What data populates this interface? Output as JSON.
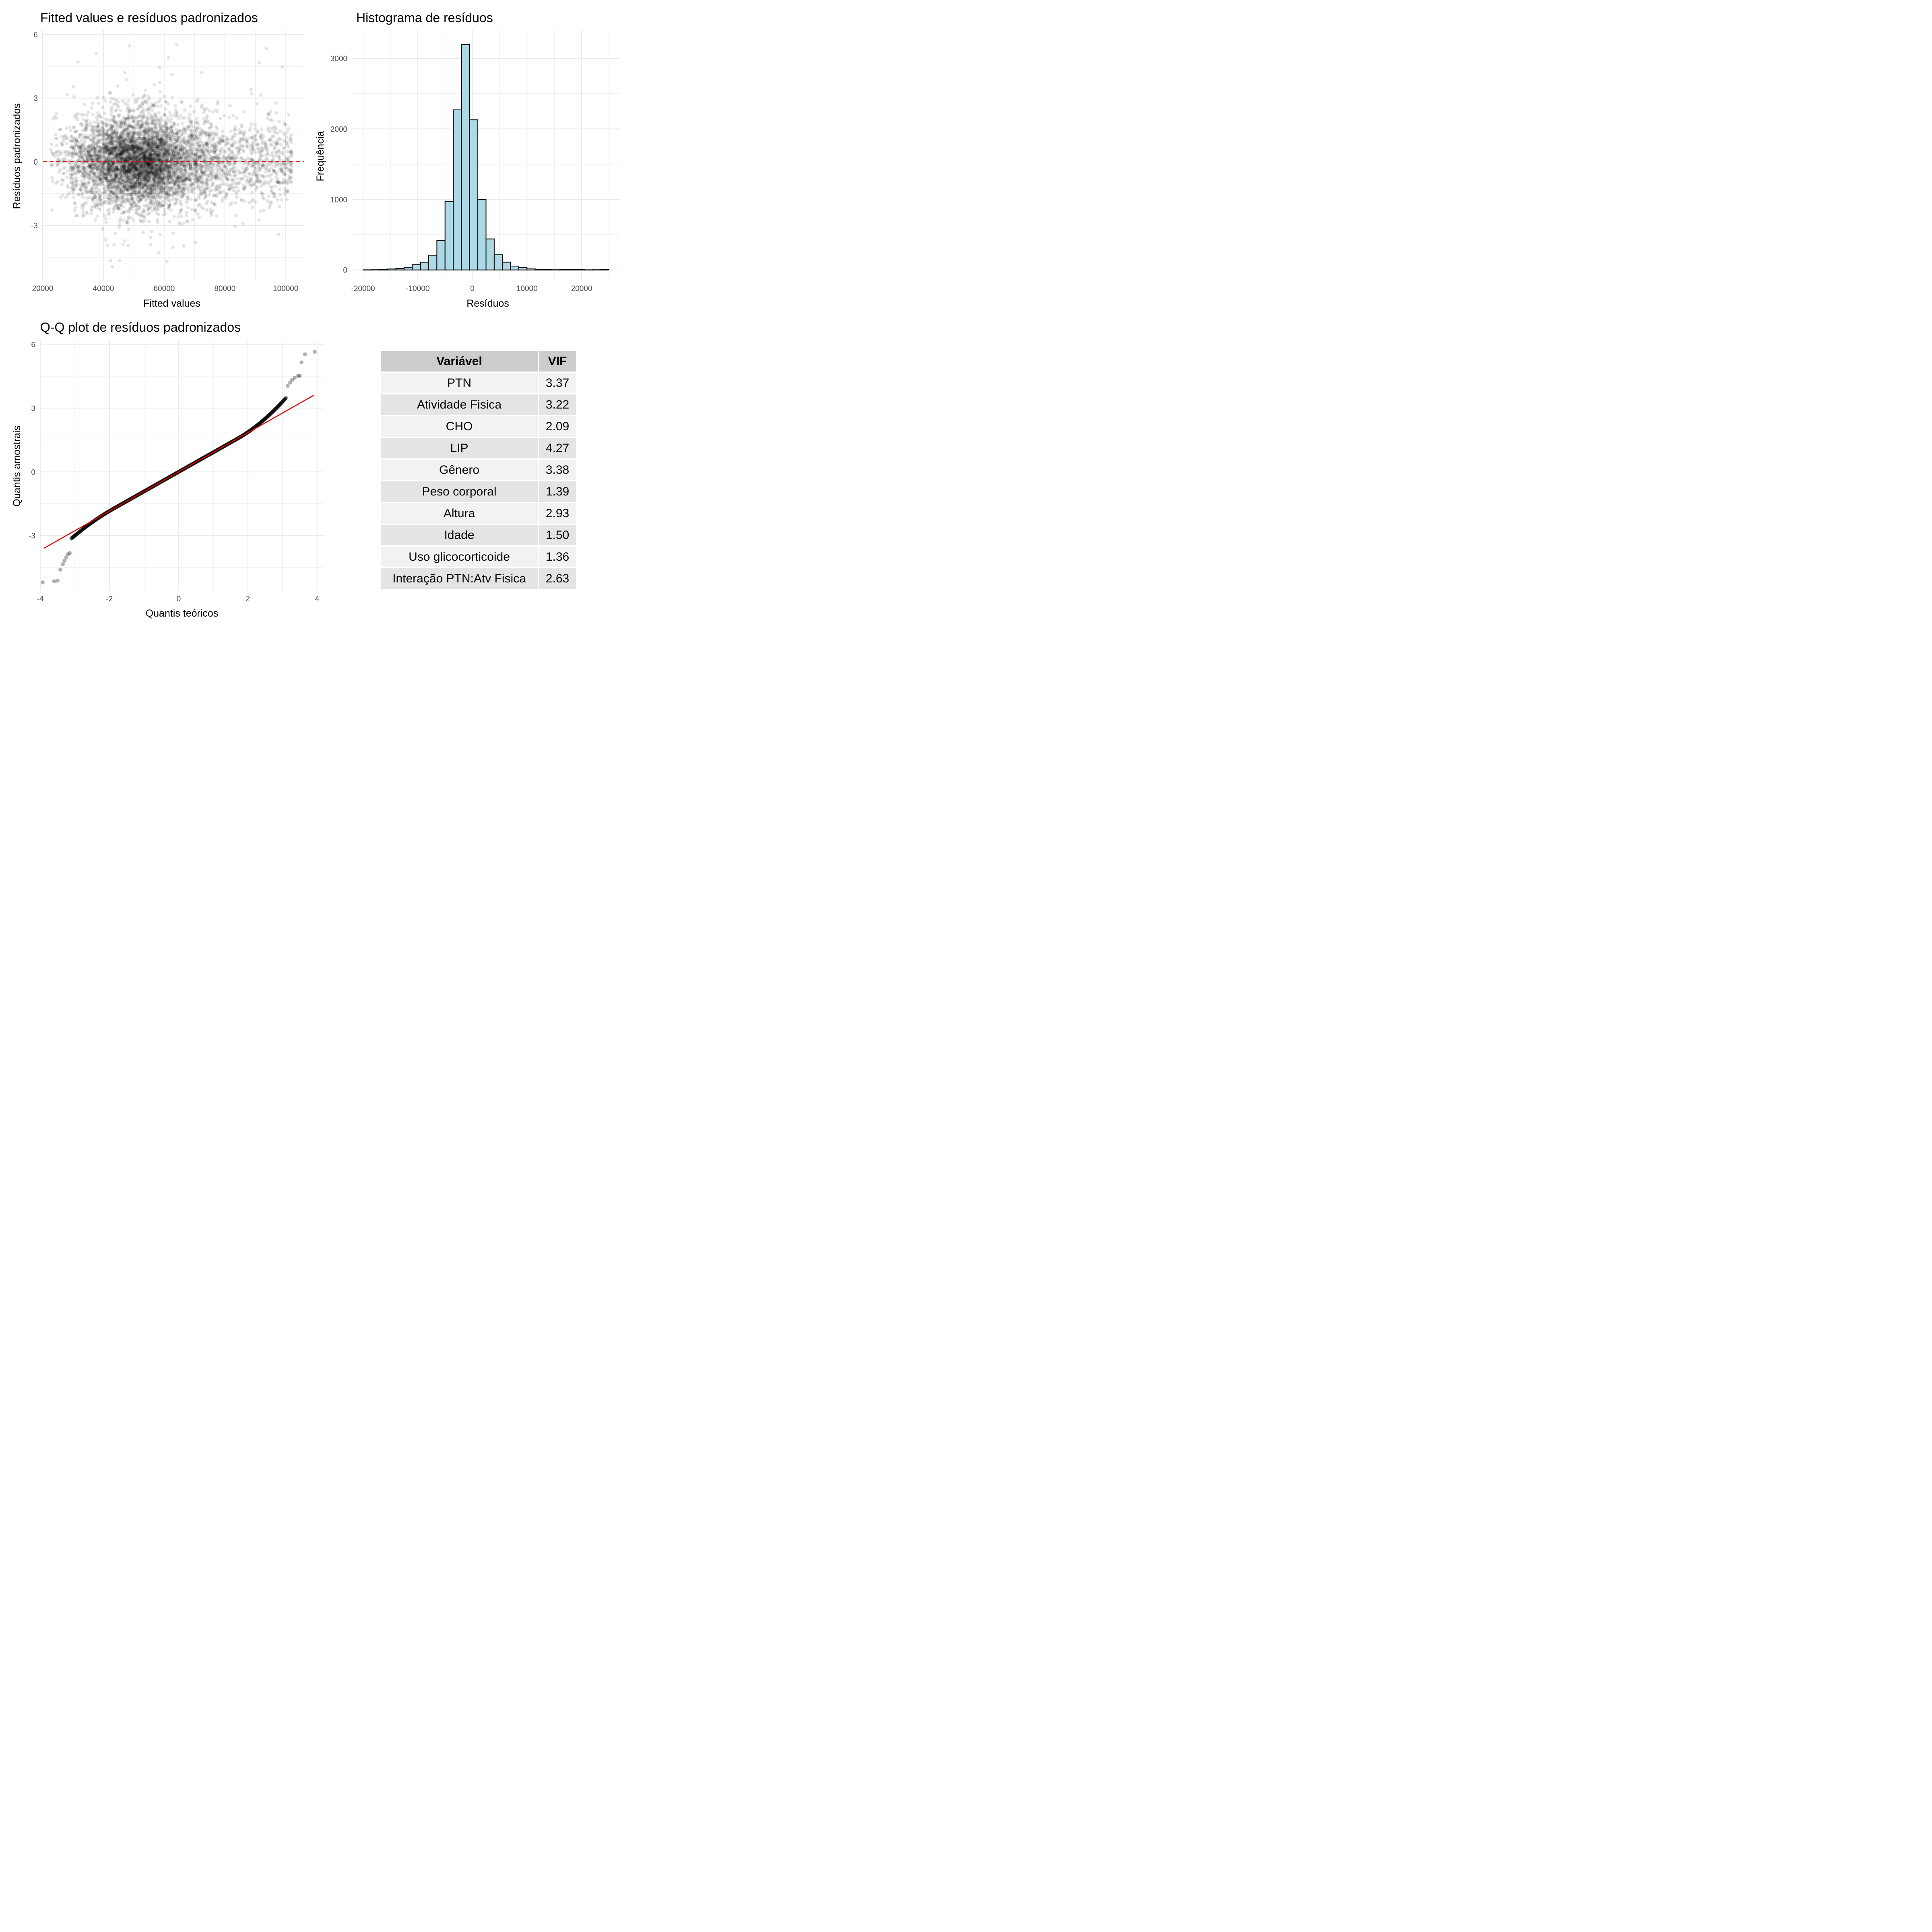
{
  "chart_data": [
    {
      "type": "scatter",
      "title": "Fitted values e resíduos padronizados",
      "xlabel": "Fitted values",
      "ylabel": "Resíduos padronizados",
      "xlim": [
        20000,
        106000
      ],
      "ylim": [
        -5.6,
        6.2
      ],
      "x_ticks": [
        "20000",
        "40000",
        "60000",
        "80000",
        "100000"
      ],
      "y_ticks": [
        "-3",
        "0",
        "3",
        "6"
      ],
      "point_color": "#000000",
      "point_alpha": 0.1,
      "reference_line": {
        "y": 0,
        "color": "#e00000",
        "style": "dashed"
      },
      "points_summary": "dense cloud centred near 50000, residuals roughly between -5.2 and 5.7",
      "grid": true
    },
    {
      "type": "bar",
      "subtype": "histogram",
      "title": "Histograma de resíduos",
      "xlabel": "Resíduos",
      "ylabel": "Frequência",
      "xlim": [
        -22000,
        27000
      ],
      "ylim": [
        -150,
        3400
      ],
      "x_ticks": [
        "-20000",
        "-10000",
        "0",
        "10000",
        "20000"
      ],
      "y_ticks": [
        "0",
        "1000",
        "2000",
        "3000"
      ],
      "bin_start": -20000,
      "bin_width": 1500,
      "values": [
        2,
        3,
        6,
        14,
        22,
        38,
        75,
        110,
        210,
        420,
        970,
        2270,
        3200,
        2130,
        1000,
        440,
        215,
        110,
        55,
        35,
        15,
        8,
        5,
        3,
        5,
        6,
        8,
        2,
        3,
        5
      ],
      "fill": "#add8e6",
      "edge": "#000000",
      "grid": true
    },
    {
      "type": "scatter",
      "subtype": "qq",
      "title": "Q-Q plot de resíduos padronizados",
      "xlabel": "Quantis teóricos",
      "ylabel": "Quantis amostrais",
      "xlim": [
        -4.0,
        4.2
      ],
      "ylim": [
        -5.6,
        6.2
      ],
      "x_ticks": [
        "-4",
        "-2",
        "0",
        "2",
        "4"
      ],
      "y_ticks": [
        "-3",
        "0",
        "3",
        "6"
      ],
      "reference_line": {
        "x": [
          -3.9,
          3.9
        ],
        "y": [
          -3.6,
          3.6
        ],
        "color": "#e00000"
      },
      "lower_tail_points": [
        [
          -3.93,
          -5.2
        ],
        [
          -3.6,
          -5.15
        ],
        [
          -3.5,
          -5.12
        ],
        [
          -3.42,
          -4.6
        ],
        [
          -3.35,
          -4.35
        ],
        [
          -3.3,
          -4.18
        ],
        [
          -3.25,
          -4.03
        ],
        [
          -3.2,
          -3.88
        ],
        [
          -3.15,
          -3.82
        ]
      ],
      "upper_tail_points": [
        [
          3.15,
          4.05
        ],
        [
          3.22,
          4.2
        ],
        [
          3.28,
          4.33
        ],
        [
          3.35,
          4.43
        ],
        [
          3.45,
          4.52
        ],
        [
          3.5,
          4.52
        ],
        [
          3.55,
          5.15
        ],
        [
          3.65,
          5.53
        ],
        [
          3.93,
          5.65
        ]
      ],
      "grid": true
    },
    {
      "type": "table",
      "columns": [
        "Variável",
        "VIF"
      ],
      "rows": [
        [
          "PTN",
          "3.37"
        ],
        [
          "Atividade Fisica",
          "3.22"
        ],
        [
          "CHO",
          "2.09"
        ],
        [
          "LIP",
          "4.27"
        ],
        [
          "Gênero",
          "3.38"
        ],
        [
          "Peso corporal",
          "1.39"
        ],
        [
          "Altura",
          "2.93"
        ],
        [
          "Idade",
          "1.50"
        ],
        [
          "Uso glicocorticoide",
          "1.36"
        ],
        [
          "Interação PTN:Atv Fisica",
          "2.63"
        ]
      ]
    }
  ]
}
